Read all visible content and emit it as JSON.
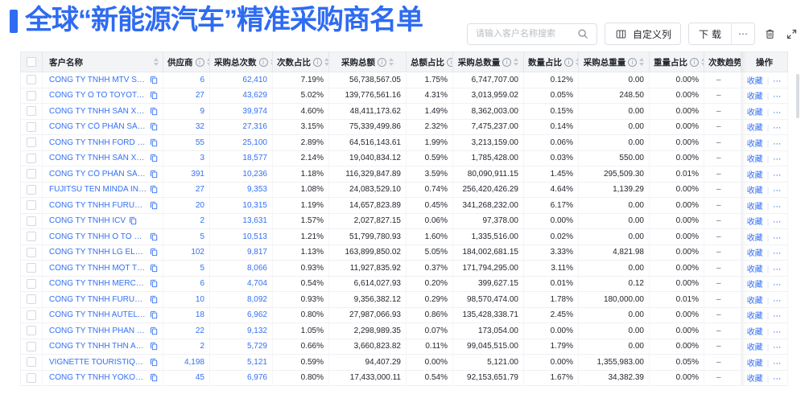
{
  "colors": {
    "accent": "#2e6bf2",
    "link": "#3370f4"
  },
  "header": {
    "title": "全球“新能源汽车”精准采购商名单",
    "search_placeholder": "请输入客户名称搜索",
    "customize_columns_label": "自定义列",
    "download_label": "下载",
    "more_label": "⋯",
    "icons": [
      "search-icon",
      "columns-icon",
      "more-icon",
      "trash-icon",
      "fullscreen-icon"
    ]
  },
  "table": {
    "select_all": "checkbox",
    "columns": [
      {
        "key": "name",
        "label": "客户名称",
        "info": false,
        "sort": true,
        "align": "left"
      },
      {
        "key": "suppliers",
        "label": "供应商",
        "info": true,
        "sort": true,
        "align": "right"
      },
      {
        "key": "count",
        "label": "采购总次数",
        "info": true,
        "sort": true,
        "align": "right"
      },
      {
        "key": "count_pct",
        "label": "次数占比",
        "info": true,
        "sort": true,
        "align": "right"
      },
      {
        "key": "amount",
        "label": "采购总额",
        "info": true,
        "sort": true,
        "align": "right"
      },
      {
        "key": "amount_pct",
        "label": "总额占比",
        "info": true,
        "sort": true,
        "align": "right"
      },
      {
        "key": "qty",
        "label": "采购总数量",
        "info": true,
        "sort": true,
        "align": "right"
      },
      {
        "key": "qty_pct",
        "label": "数量占比",
        "info": true,
        "sort": true,
        "align": "right"
      },
      {
        "key": "weight",
        "label": "采购总重量",
        "info": true,
        "sort": true,
        "align": "right"
      },
      {
        "key": "weight_pct",
        "label": "重量占比",
        "info": true,
        "sort": true,
        "align": "right"
      },
      {
        "key": "trend",
        "label": "次数趋势",
        "info": false,
        "sort": false,
        "align": "left"
      },
      {
        "key": "actions",
        "label": "操作",
        "info": false,
        "sort": false,
        "align": "center"
      }
    ],
    "row_actions": {
      "favorite": "收藏",
      "divider": "|",
      "more": "⋯"
    },
    "rows": [
      {
        "name": "CÔNG TY TNHH MTV SẢN XUẤ...",
        "suppliers": "6",
        "count": "62,410",
        "count_pct": "7.19%",
        "amount": "56,738,567.05",
        "amount_pct": "1.75%",
        "qty": "6,747,707.00",
        "qty_pct": "0.12%",
        "weight": "0.00",
        "weight_pct": "0.00%",
        "trend": "–"
      },
      {
        "name": "CÔNG TY Ô TÔ TOYOTA VIỆT ...",
        "suppliers": "27",
        "count": "43,629",
        "count_pct": "5.02%",
        "amount": "139,776,561.16",
        "amount_pct": "4.31%",
        "qty": "3,013,959.02",
        "qty_pct": "0.05%",
        "weight": "248.50",
        "weight_pct": "0.00%",
        "trend": "–"
      },
      {
        "name": "CÔNG TY TNHH SẢN XUẤT VÀ ...",
        "suppliers": "9",
        "count": "39,974",
        "count_pct": "4.60%",
        "amount": "48,411,173.62",
        "amount_pct": "1.49%",
        "qty": "8,362,003.00",
        "qty_pct": "0.15%",
        "weight": "0.00",
        "weight_pct": "0.00%",
        "trend": "–"
      },
      {
        "name": "CÔNG TY CỔ PHẦN SẢN XUẤT...",
        "suppliers": "32",
        "count": "27,316",
        "count_pct": "3.15%",
        "amount": "75,339,499.86",
        "amount_pct": "2.32%",
        "qty": "7,475,237.00",
        "qty_pct": "0.14%",
        "weight": "0.00",
        "weight_pct": "0.00%",
        "trend": "–"
      },
      {
        "name": "CÔNG TY TNHH FORD VIỆT NAM",
        "suppliers": "55",
        "count": "25,100",
        "count_pct": "2.89%",
        "amount": "64,516,143.61",
        "amount_pct": "1.99%",
        "qty": "3,213,159.00",
        "qty_pct": "0.06%",
        "weight": "0.00",
        "weight_pct": "0.00%",
        "trend": "–"
      },
      {
        "name": "CÔNG TY TNHH SẢN XUẤT VÀ ...",
        "suppliers": "3",
        "count": "18,577",
        "count_pct": "2.14%",
        "amount": "19,040,834.12",
        "amount_pct": "0.59%",
        "qty": "1,785,428.00",
        "qty_pct": "0.03%",
        "weight": "550.00",
        "weight_pct": "0.00%",
        "trend": "–"
      },
      {
        "name": "CÔNG TY CỔ PHẦN SẢN XUẤT...",
        "suppliers": "391",
        "count": "10,236",
        "count_pct": "1.18%",
        "amount": "116,329,847.89",
        "amount_pct": "3.59%",
        "qty": "80,090,911.15",
        "qty_pct": "1.45%",
        "weight": "295,509.30",
        "weight_pct": "0.01%",
        "trend": "–"
      },
      {
        "name": "FUJITSU TEN MINDA INDIA PVT...",
        "suppliers": "27",
        "count": "9,353",
        "count_pct": "1.08%",
        "amount": "24,083,529.10",
        "amount_pct": "0.74%",
        "qty": "256,420,426.29",
        "qty_pct": "4.64%",
        "weight": "1,139.29",
        "weight_pct": "0.00%",
        "trend": "–"
      },
      {
        "name": "CÔNG TY TNHH FURUKAWA A...",
        "suppliers": "20",
        "count": "10,315",
        "count_pct": "1.19%",
        "amount": "14,657,823.89",
        "amount_pct": "0.45%",
        "qty": "341,268,232.00",
        "qty_pct": "6.17%",
        "weight": "0.00",
        "weight_pct": "0.00%",
        "trend": "–"
      },
      {
        "name": "CÔNG TY TNHH ICV",
        "suppliers": "2",
        "count": "13,631",
        "count_pct": "1.57%",
        "amount": "2,027,827.15",
        "amount_pct": "0.06%",
        "qty": "97,378.00",
        "qty_pct": "0.00%",
        "weight": "0.00",
        "weight_pct": "0.00%",
        "trend": "–"
      },
      {
        "name": "CÔNG TY TNHH Ô TÔ MITSUBI...",
        "suppliers": "5",
        "count": "10,513",
        "count_pct": "1.21%",
        "amount": "51,799,780.93",
        "amount_pct": "1.60%",
        "qty": "1,335,516.00",
        "qty_pct": "0.02%",
        "weight": "0.00",
        "weight_pct": "0.00%",
        "trend": "–"
      },
      {
        "name": "CÔNG TY TNHH LG ELECTRON...",
        "suppliers": "102",
        "count": "9,817",
        "count_pct": "1.13%",
        "amount": "163,899,850.02",
        "amount_pct": "5.05%",
        "qty": "184,002,681.15",
        "qty_pct": "3.33%",
        "weight": "4,821.98",
        "weight_pct": "0.00%",
        "trend": "–"
      },
      {
        "name": "CÔNG TY TNHH MỘT THÀNH V...",
        "suppliers": "5",
        "count": "8,066",
        "count_pct": "0.93%",
        "amount": "11,927,835.92",
        "amount_pct": "0.37%",
        "qty": "171,794,295.00",
        "qty_pct": "3.11%",
        "weight": "0.00",
        "weight_pct": "0.00%",
        "trend": "–"
      },
      {
        "name": "CÔNG TY TNHH MERCEDES-B...",
        "suppliers": "6",
        "count": "4,704",
        "count_pct": "0.54%",
        "amount": "6,614,027.93",
        "amount_pct": "0.20%",
        "qty": "399,627.15",
        "qty_pct": "0.01%",
        "weight": "0.12",
        "weight_pct": "0.00%",
        "trend": "–"
      },
      {
        "name": "CÔNG TY TNHH FURUKAWA A...",
        "suppliers": "10",
        "count": "8,092",
        "count_pct": "0.93%",
        "amount": "9,356,382.12",
        "amount_pct": "0.29%",
        "qty": "98,570,474.00",
        "qty_pct": "1.78%",
        "weight": "180,000.00",
        "weight_pct": "0.01%",
        "trend": "–"
      },
      {
        "name": "CÔNG TY TNHH AUTEL VIỆT N...",
        "suppliers": "18",
        "count": "6,962",
        "count_pct": "0.80%",
        "amount": "27,987,066.93",
        "amount_pct": "0.86%",
        "qty": "135,428,338.71",
        "qty_pct": "2.45%",
        "weight": "0.00",
        "weight_pct": "0.00%",
        "trend": "–"
      },
      {
        "name": "CÔNG TY TNHH PHÂN PHỐI T...",
        "suppliers": "22",
        "count": "9,132",
        "count_pct": "1.05%",
        "amount": "2,298,989.35",
        "amount_pct": "0.07%",
        "qty": "173,054.00",
        "qty_pct": "0.00%",
        "weight": "0.00",
        "weight_pct": "0.00%",
        "trend": "–"
      },
      {
        "name": "CÔNG TY TNHH THN AUTOPAR...",
        "suppliers": "2",
        "count": "5,729",
        "count_pct": "0.66%",
        "amount": "3,660,823.82",
        "amount_pct": "0.11%",
        "qty": "99,045,515.00",
        "qty_pct": "1.79%",
        "weight": "0.00",
        "weight_pct": "0.00%",
        "trend": "–"
      },
      {
        "name": "VIGNETTE TOURISTIQUE G UNI...",
        "suppliers": "4,198",
        "count": "5,121",
        "count_pct": "0.59%",
        "amount": "94,407.29",
        "amount_pct": "0.00%",
        "qty": "5,121.00",
        "qty_pct": "0.00%",
        "weight": "1,355,983.00",
        "weight_pct": "0.05%",
        "trend": "–"
      },
      {
        "name": "CÔNG TY TNHH YOKOWO VIỆT...",
        "suppliers": "45",
        "count": "6,976",
        "count_pct": "0.80%",
        "amount": "17,433,000.11",
        "amount_pct": "0.54%",
        "qty": "92,153,651.79",
        "qty_pct": "1.67%",
        "weight": "34,382.39",
        "weight_pct": "0.00%",
        "trend": "–"
      }
    ]
  }
}
